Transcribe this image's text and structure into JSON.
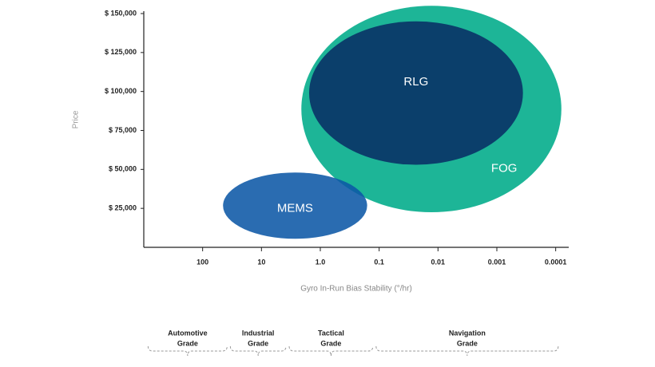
{
  "chart_data": {
    "type": "ellipse-region",
    "y_label": "Price",
    "x_label": "Gyro In-Run Bias Stability (°/hr)",
    "x_log": true,
    "xlim": [
      1000,
      6e-05
    ],
    "xticks": [
      100,
      10,
      {
        "value": 1,
        "label": "1.0"
      },
      0.1,
      0.01,
      0.001,
      0.0001
    ],
    "ylim": [
      0,
      150000
    ],
    "yticks": [
      {
        "value": 25000,
        "label": "$ 25,000"
      },
      {
        "value": 50000,
        "label": "$ 50,000"
      },
      {
        "value": 75000,
        "label": "$ 75,000"
      },
      {
        "value": 100000,
        "label": "$ 100,000"
      },
      {
        "value": 125000,
        "label": "$ 125,000"
      },
      {
        "value": 150000,
        "label": "$ 150,000"
      }
    ],
    "regions": [
      {
        "name": "FOG",
        "color": "#1db597",
        "x": [
          2.1,
          8e-05
        ],
        "y": [
          22500,
          155000
        ]
      },
      {
        "name": "RLG",
        "color": "#0b3f6b",
        "x": [
          1.55,
          0.00036
        ],
        "y": [
          53000,
          145000
        ]
      },
      {
        "name": "MEMS",
        "color": "#0d58a6",
        "x": [
          45,
          0.16
        ],
        "y": [
          5500,
          48000
        ]
      }
    ],
    "grades": [
      {
        "label": [
          "Automotive",
          "Grade"
        ],
        "x": [
          900,
          36
        ]
      },
      {
        "label": [
          "Industrial",
          "Grade"
        ],
        "x": [
          36,
          3.6
        ]
      },
      {
        "label": [
          "Tactical",
          "Grade"
        ],
        "x": [
          3.6,
          0.12
        ]
      },
      {
        "label": [
          "Navigation",
          "Grade"
        ],
        "x": [
          0.12,
          8.5e-05
        ]
      }
    ]
  }
}
